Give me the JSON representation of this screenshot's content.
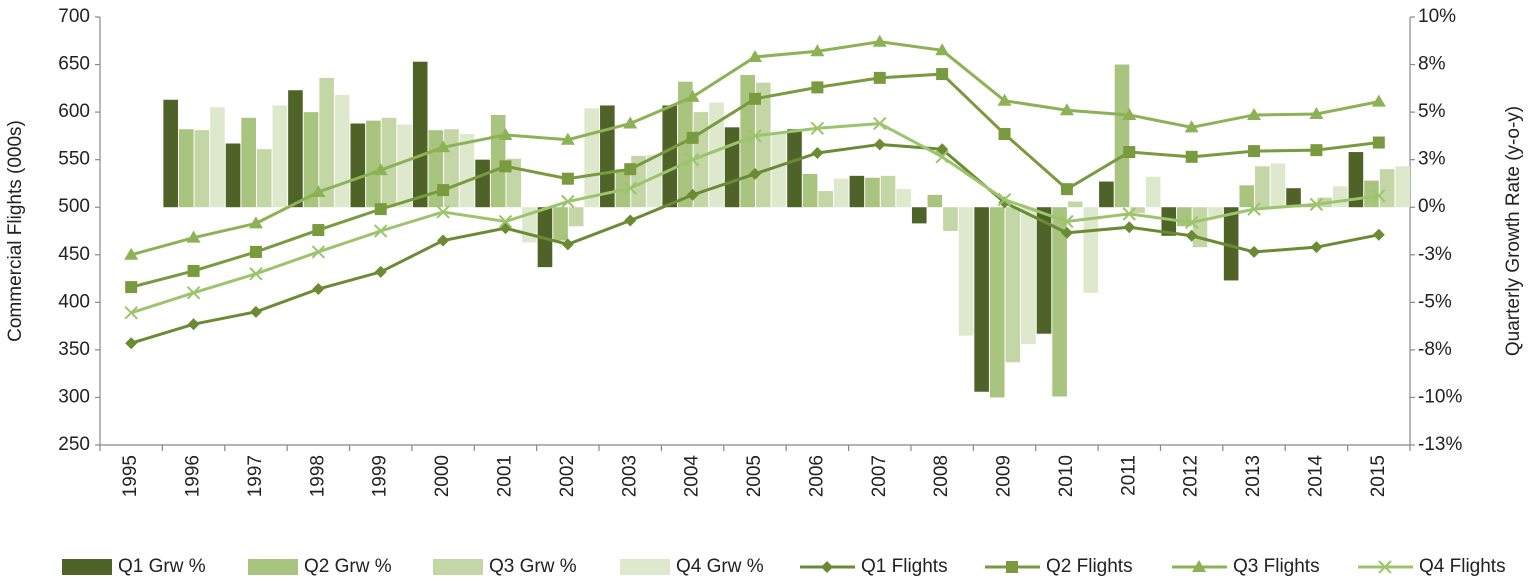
{
  "chart_data": {
    "type": "combo",
    "y_label": "Commercial Flights (000s)",
    "y2_label": "Quarterly Growth Rate (y-o-y)",
    "categories": [
      "1995",
      "1996",
      "1997",
      "1998",
      "1999",
      "2000",
      "2001",
      "2002",
      "2003",
      "2004",
      "2005",
      "2006",
      "2007",
      "2008",
      "2009",
      "2010",
      "2011",
      "2012",
      "2013",
      "2014",
      "2015"
    ],
    "ylim": [
      250,
      700
    ],
    "yticks": [
      250,
      300,
      350,
      400,
      450,
      500,
      550,
      600,
      650,
      700
    ],
    "y2lim": [
      -12.5,
      10
    ],
    "y2ticks": [
      {
        "value": -12.5,
        "label": "-13%"
      },
      {
        "value": -10,
        "label": "-10%"
      },
      {
        "value": -7.5,
        "label": "-8%"
      },
      {
        "value": -5,
        "label": "-5%"
      },
      {
        "value": -2.5,
        "label": "-3%"
      },
      {
        "value": 0,
        "label": "0%"
      },
      {
        "value": 2.5,
        "label": "3%"
      },
      {
        "value": 5,
        "label": "5%"
      },
      {
        "value": 7.5,
        "label": "8%"
      },
      {
        "value": 10,
        "label": "10%"
      }
    ],
    "grid": false,
    "legend": "bottom",
    "series": [
      {
        "name": "Q1 Grw %",
        "type": "bar",
        "axis": "y2",
        "color": "#4f6228",
        "values": [
          null,
          5.65,
          3.35,
          6.15,
          4.4,
          7.65,
          2.5,
          -3.15,
          5.35,
          5.35,
          4.2,
          4.1,
          1.65,
          -0.85,
          -9.7,
          -6.65,
          1.35,
          -1.5,
          -3.85,
          1.0,
          2.9
        ]
      },
      {
        "name": "Q2 Grw %",
        "type": "bar",
        "axis": "y2",
        "color": "#a9c47f",
        "values": [
          null,
          4.1,
          4.7,
          5.0,
          4.55,
          4.05,
          4.85,
          -1.75,
          2.0,
          6.6,
          6.95,
          1.75,
          1.55,
          0.65,
          -10,
          -9.95,
          7.5,
          -1.0,
          1.15,
          0.15,
          1.4
        ]
      },
      {
        "name": "Q3 Grw %",
        "type": "bar",
        "axis": "y2",
        "color": "#c4d6a5",
        "values": [
          null,
          4.05,
          3.05,
          6.8,
          4.7,
          4.1,
          2.55,
          -1.0,
          2.7,
          5.0,
          6.55,
          0.85,
          1.65,
          -1.25,
          -8.15,
          0.3,
          -0.3,
          -2.1,
          2.15,
          0.5,
          2.0
        ]
      },
      {
        "name": "Q4 Grw %",
        "type": "bar",
        "axis": "y2",
        "color": "#dde8cc",
        "values": [
          null,
          5.25,
          5.35,
          5.9,
          4.35,
          3.85,
          -1.85,
          5.2,
          2.75,
          5.5,
          3.9,
          1.5,
          0.95,
          -6.75,
          -7.2,
          -4.5,
          1.6,
          -0.5,
          2.3,
          1.1,
          2.15
        ]
      },
      {
        "name": "Q1 Flights",
        "type": "line",
        "marker": "diamond",
        "color": "#6b8a34",
        "values": [
          357,
          377,
          390,
          414,
          432,
          465,
          478,
          461,
          486,
          513,
          535,
          557,
          566,
          561,
          505,
          473,
          479,
          470,
          453,
          458,
          471
        ]
      },
      {
        "name": "Q2 Flights",
        "type": "line",
        "marker": "square",
        "color": "#7a9a40",
        "values": [
          416,
          433,
          453,
          476,
          498,
          518,
          543,
          530,
          540,
          573,
          614,
          626,
          636,
          640,
          577,
          519,
          558,
          553,
          559,
          560,
          568
        ]
      },
      {
        "name": "Q3 Flights",
        "type": "line",
        "marker": "triangle",
        "color": "#8db255",
        "values": [
          450,
          468,
          483,
          516,
          539,
          563,
          576,
          571,
          588,
          616,
          658,
          664,
          674,
          665,
          612,
          602,
          597,
          584,
          597,
          598,
          611
        ]
      },
      {
        "name": "Q4 Flights",
        "type": "line",
        "marker": "x",
        "color": "#9cc46c",
        "values": [
          389,
          410,
          430,
          453,
          475,
          495,
          485,
          506,
          520,
          550,
          575,
          583,
          588,
          553,
          508,
          485,
          493,
          484,
          498,
          503,
          512
        ]
      }
    ]
  }
}
